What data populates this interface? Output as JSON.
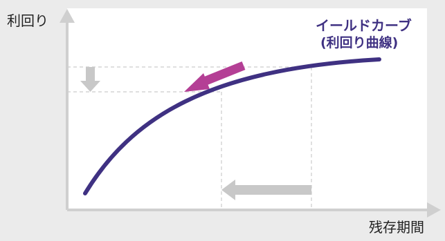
{
  "diagram": {
    "y_axis_label": "利回り",
    "x_axis_label": "残存期間",
    "curve_label_line1": "イールドカーブ",
    "curve_label_line2": "(利回り曲線)"
  },
  "colors": {
    "background": "#ebebeb",
    "plot_background": "#ffffff",
    "axis": "#cfcfcf",
    "curve": "#3f3182",
    "magenta_arrow": "#b43f95",
    "gray_arrow": "#c8c8c8",
    "guide_lines": "#cccccc"
  }
}
